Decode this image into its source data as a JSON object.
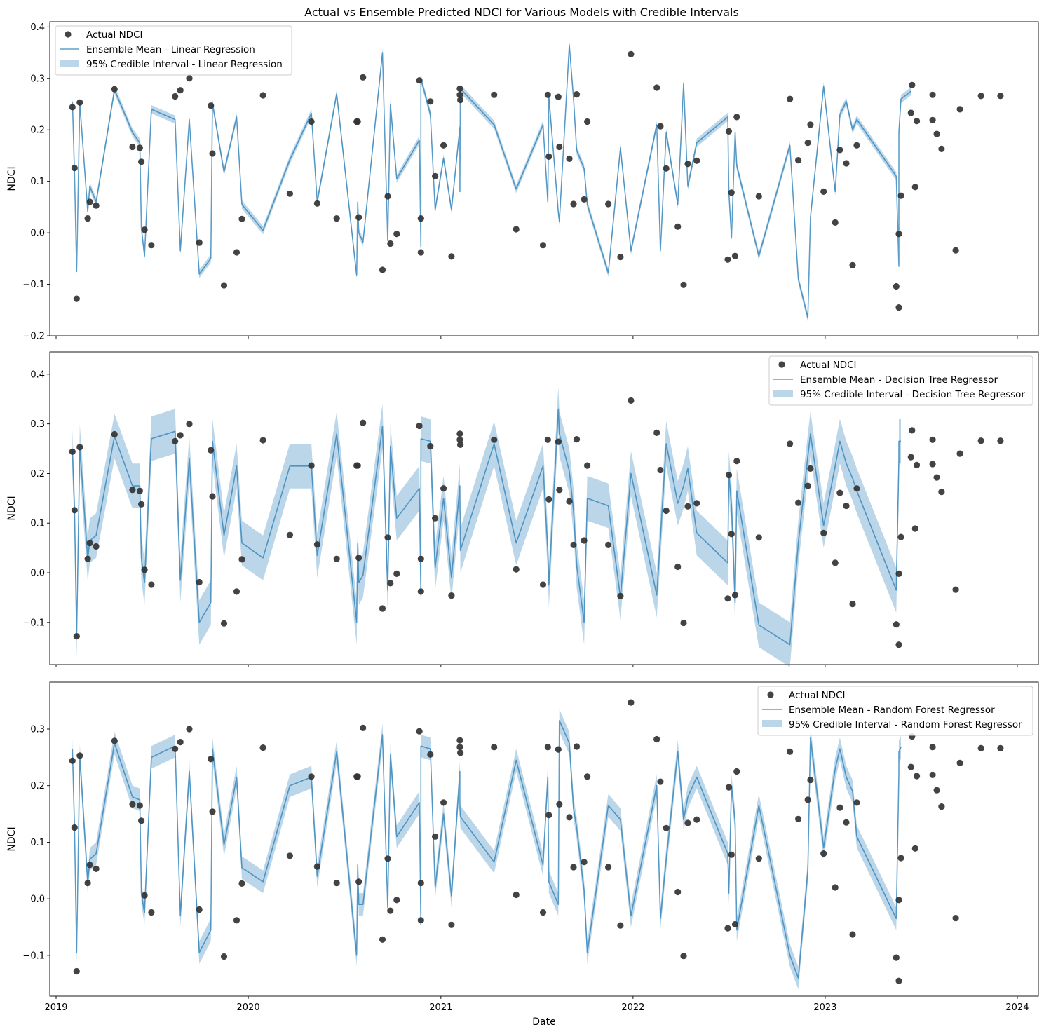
{
  "figure": {
    "title": "Actual vs Ensemble Predicted NDCI for Various Models with Credible Intervals",
    "xlabel": "Date"
  },
  "colors": {
    "actual": "#333333",
    "mean": "#1f77b4",
    "band": "#1f77b4"
  },
  "chart_data": [
    {
      "type": "line",
      "model": "Linear Regression",
      "ylabel": "NDCI",
      "ylim": [
        -0.2,
        0.41
      ],
      "yticks": [
        -0.2,
        -0.1,
        0.0,
        0.1,
        0.2,
        0.3,
        0.4
      ],
      "xlim": [
        "2018-12-20",
        "2024-02-10"
      ],
      "xticks": [
        "2019",
        "2020",
        "2021",
        "2022",
        "2023",
        "2024"
      ],
      "show_xtick_labels": false,
      "legend_position": "upper left",
      "legend": [
        "Actual NDCI",
        "Ensemble Mean - Linear Regression",
        "95% Credible Interval - Linear Regression"
      ],
      "band_width": 0.008,
      "mean_values": [
        0.255,
        0.115,
        -0.075,
        0.252,
        0.042,
        0.09,
        0.06,
        0.278,
        0.195,
        0.175,
        0.01,
        -0.045,
        0.24,
        0.22,
        -0.035,
        0.22,
        -0.08,
        -0.05,
        0.252,
        0.118,
        0.225,
        0.055,
        0.005,
        0.142,
        0.232,
        0.06,
        0.27,
        -0.083,
        0.06,
        0.0,
        -0.018,
        0.35,
        -0.015,
        0.25,
        0.105,
        0.18,
        -0.028,
        0.3,
        0.23,
        0.045,
        0.145,
        0.045,
        0.205,
        0.08,
        0.28,
        0.21,
        0.085,
        0.21,
        0.06,
        0.265,
        0.04,
        0.022,
        0.365,
        0.26,
        0.16,
        0.125,
        0.055,
        -0.078,
        0.165,
        -0.035,
        0.21,
        -0.035,
        0.195,
        0.055,
        0.29,
        0.09,
        0.175,
        0.225,
        0.08,
        -0.01,
        0.195,
        0.13,
        -0.045,
        0.17,
        -0.09,
        -0.165,
        0.03,
        0.285,
        0.08,
        0.23,
        0.255,
        0.2,
        0.22,
        0.11,
        -0.065,
        0.195,
        0.26,
        0.275
      ]
    },
    {
      "type": "line",
      "model": "Decision Tree Regressor",
      "ylabel": "NDCI",
      "ylim": [
        -0.185,
        0.445
      ],
      "yticks": [
        -0.1,
        0.0,
        0.1,
        0.2,
        0.3,
        0.4
      ],
      "xlim": [
        "2018-12-20",
        "2024-02-10"
      ],
      "xticks": [
        "2019",
        "2020",
        "2021",
        "2022",
        "2023",
        "2024"
      ],
      "show_xtick_labels": false,
      "legend_position": "upper right",
      "legend": [
        "Actual NDCI",
        "Ensemble Mean - Decision Tree Regressor",
        "95% Credible Interval - Decision Tree Regressor"
      ],
      "band_width": 0.045,
      "mean_values": [
        0.244,
        0.127,
        -0.128,
        0.254,
        0.028,
        0.065,
        0.075,
        0.275,
        0.175,
        0.175,
        0.03,
        -0.02,
        0.27,
        0.285,
        -0.015,
        0.23,
        -0.1,
        -0.06,
        0.265,
        0.075,
        0.215,
        0.06,
        0.03,
        0.215,
        0.215,
        0.035,
        0.28,
        -0.1,
        0.06,
        -0.02,
        -0.005,
        0.295,
        -0.035,
        0.255,
        0.11,
        0.17,
        -0.045,
        0.27,
        0.265,
        0.01,
        0.15,
        -0.01,
        0.175,
        0.165,
        0.045,
        0.26,
        0.06,
        0.215,
        0.045,
        -0.025,
        0.33,
        0.28,
        0.205,
        0.125,
        0.015,
        -0.1,
        0.15,
        0.135,
        -0.05,
        0.2,
        -0.045,
        0.07,
        0.26,
        0.14,
        0.175,
        0.21,
        0.08,
        0.02,
        0.2,
        0.135,
        -0.06,
        0.165,
        -0.105,
        -0.145,
        0.06,
        0.235,
        0.28,
        0.095,
        0.215,
        0.265,
        0.22,
        0.19,
        0.165,
        -0.035,
        0.225,
        0.265,
        0.265
      ]
    },
    {
      "type": "line",
      "model": "Random Forest Regressor",
      "ylabel": "NDCI",
      "ylim": [
        -0.172,
        0.383
      ],
      "yticks": [
        -0.1,
        0.0,
        0.1,
        0.2,
        0.3
      ],
      "xlim": [
        "2018-12-20",
        "2024-02-10"
      ],
      "xticks": [
        "2019",
        "2020",
        "2021",
        "2022",
        "2023",
        "2024"
      ],
      "show_xtick_labels": true,
      "legend_position": "upper right",
      "legend": [
        "Actual NDCI",
        "Ensemble Mean - Random Forest Regressor",
        "95% Credible Interval - Random Forest Regressor"
      ],
      "band_width": 0.02,
      "mean_values": [
        0.265,
        0.125,
        -0.095,
        0.254,
        0.028,
        0.07,
        0.08,
        0.275,
        0.18,
        0.175,
        0.01,
        -0.025,
        0.25,
        0.27,
        -0.03,
        0.225,
        -0.095,
        -0.055,
        0.265,
        0.095,
        0.215,
        0.055,
        0.03,
        0.2,
        0.215,
        0.04,
        0.26,
        -0.1,
        0.06,
        -0.01,
        -0.01,
        0.29,
        -0.015,
        0.255,
        0.11,
        0.17,
        -0.045,
        0.27,
        0.265,
        0.02,
        0.15,
        0.005,
        0.225,
        0.16,
        0.145,
        0.065,
        0.245,
        0.06,
        0.215,
        0.03,
        -0.01,
        0.315,
        0.275,
        0.16,
        0.125,
        0.015,
        -0.095,
        0.165,
        0.14,
        -0.03,
        0.2,
        -0.035,
        0.07,
        0.26,
        0.14,
        0.18,
        0.215,
        0.08,
        0.01,
        0.2,
        0.135,
        -0.055,
        0.165,
        -0.1,
        -0.14,
        0.05,
        0.285,
        0.09,
        0.23,
        0.265,
        0.215,
        0.19,
        0.11,
        -0.035,
        0.22,
        0.26,
        0.268
      ]
    }
  ],
  "actual": {
    "name": "Actual NDCI",
    "points": [
      [
        "2019-02-01",
        0.244
      ],
      [
        "2019-02-05",
        0.126
      ],
      [
        "2019-02-09",
        -0.128
      ],
      [
        "2019-02-15",
        0.253
      ],
      [
        "2019-03-02",
        0.028
      ],
      [
        "2019-03-06",
        0.06
      ],
      [
        "2019-03-18",
        0.053
      ],
      [
        "2019-04-22",
        0.279
      ],
      [
        "2019-05-26",
        0.167
      ],
      [
        "2019-06-09",
        0.165
      ],
      [
        "2019-06-12",
        0.138
      ],
      [
        "2019-06-18",
        0.006
      ],
      [
        "2019-07-01",
        -0.024
      ],
      [
        "2019-08-15",
        0.265
      ],
      [
        "2019-08-25",
        0.277
      ],
      [
        "2019-09-11",
        0.3
      ],
      [
        "2019-09-30",
        -0.019
      ],
      [
        "2019-10-22",
        0.247
      ],
      [
        "2019-10-25",
        0.154
      ],
      [
        "2019-11-16",
        -0.102
      ],
      [
        "2019-12-10",
        -0.038
      ],
      [
        "2019-12-20",
        0.027
      ],
      [
        "2020-01-29",
        0.267
      ],
      [
        "2020-03-20",
        0.076
      ],
      [
        "2020-04-30",
        0.216
      ],
      [
        "2020-05-11",
        0.057
      ],
      [
        "2020-06-17",
        0.028
      ],
      [
        "2020-07-25",
        0.216
      ],
      [
        "2020-07-27",
        0.216
      ],
      [
        "2020-07-29",
        0.03
      ],
      [
        "2020-08-06",
        0.302
      ],
      [
        "2020-09-12",
        -0.072
      ],
      [
        "2020-09-22",
        0.071
      ],
      [
        "2020-09-27",
        -0.021
      ],
      [
        "2020-10-09",
        -0.002
      ],
      [
        "2020-11-21",
        0.296
      ],
      [
        "2020-11-24",
        0.028
      ],
      [
        "2020-11-24",
        -0.038
      ],
      [
        "2020-12-12",
        0.255
      ],
      [
        "2020-12-21",
        0.11
      ],
      [
        "2021-01-06",
        0.17
      ],
      [
        "2021-01-21",
        -0.046
      ],
      [
        "2021-02-06",
        0.28
      ],
      [
        "2021-02-06",
        0.268
      ],
      [
        "2021-02-07",
        0.258
      ],
      [
        "2021-04-12",
        0.268
      ],
      [
        "2021-05-24",
        0.007
      ],
      [
        "2021-07-14",
        -0.024
      ],
      [
        "2021-07-23",
        0.268
      ],
      [
        "2021-07-25",
        0.148
      ],
      [
        "2021-08-12",
        0.264
      ],
      [
        "2021-08-14",
        0.167
      ],
      [
        "2021-09-02",
        0.144
      ],
      [
        "2021-09-10",
        0.056
      ],
      [
        "2021-09-16",
        0.269
      ],
      [
        "2021-09-30",
        0.065
      ],
      [
        "2021-10-06",
        0.216
      ],
      [
        "2021-11-15",
        0.056
      ],
      [
        "2021-12-08",
        -0.047
      ],
      [
        "2021-12-28",
        0.347
      ],
      [
        "2022-02-15",
        0.282
      ],
      [
        "2022-02-22",
        0.207
      ],
      [
        "2022-03-05",
        0.125
      ],
      [
        "2022-03-27",
        0.012
      ],
      [
        "2022-04-07",
        -0.101
      ],
      [
        "2022-04-15",
        0.134
      ],
      [
        "2022-05-02",
        0.14
      ],
      [
        "2022-06-30",
        -0.052
      ],
      [
        "2022-07-02",
        0.197
      ],
      [
        "2022-07-07",
        0.078
      ],
      [
        "2022-07-14",
        -0.045
      ],
      [
        "2022-07-17",
        0.225
      ],
      [
        "2022-08-28",
        0.071
      ],
      [
        "2022-10-26",
        0.26
      ],
      [
        "2022-11-11",
        0.141
      ],
      [
        "2022-11-29",
        0.175
      ],
      [
        "2022-12-04",
        0.21
      ],
      [
        "2022-12-29",
        0.08
      ],
      [
        "2023-01-20",
        0.02
      ],
      [
        "2023-01-29",
        0.161
      ],
      [
        "2023-02-10",
        0.135
      ],
      [
        "2023-02-22",
        -0.063
      ],
      [
        "2023-03-02",
        0.17
      ],
      [
        "2023-05-16",
        -0.104
      ],
      [
        "2023-05-21",
        -0.002
      ],
      [
        "2023-05-21",
        -0.145
      ],
      [
        "2023-05-25",
        0.072
      ],
      [
        "2023-06-13",
        0.233
      ],
      [
        "2023-06-15",
        0.287
      ],
      [
        "2023-06-21",
        0.089
      ],
      [
        "2023-06-24",
        0.217
      ],
      [
        "2023-07-24",
        0.268
      ],
      [
        "2023-07-24",
        0.219
      ],
      [
        "2023-08-01",
        0.192
      ],
      [
        "2023-08-10",
        0.163
      ],
      [
        "2023-09-06",
        -0.034
      ],
      [
        "2023-09-14",
        0.24
      ],
      [
        "2023-10-24",
        0.266
      ],
      [
        "2023-11-30",
        0.266
      ]
    ]
  }
}
